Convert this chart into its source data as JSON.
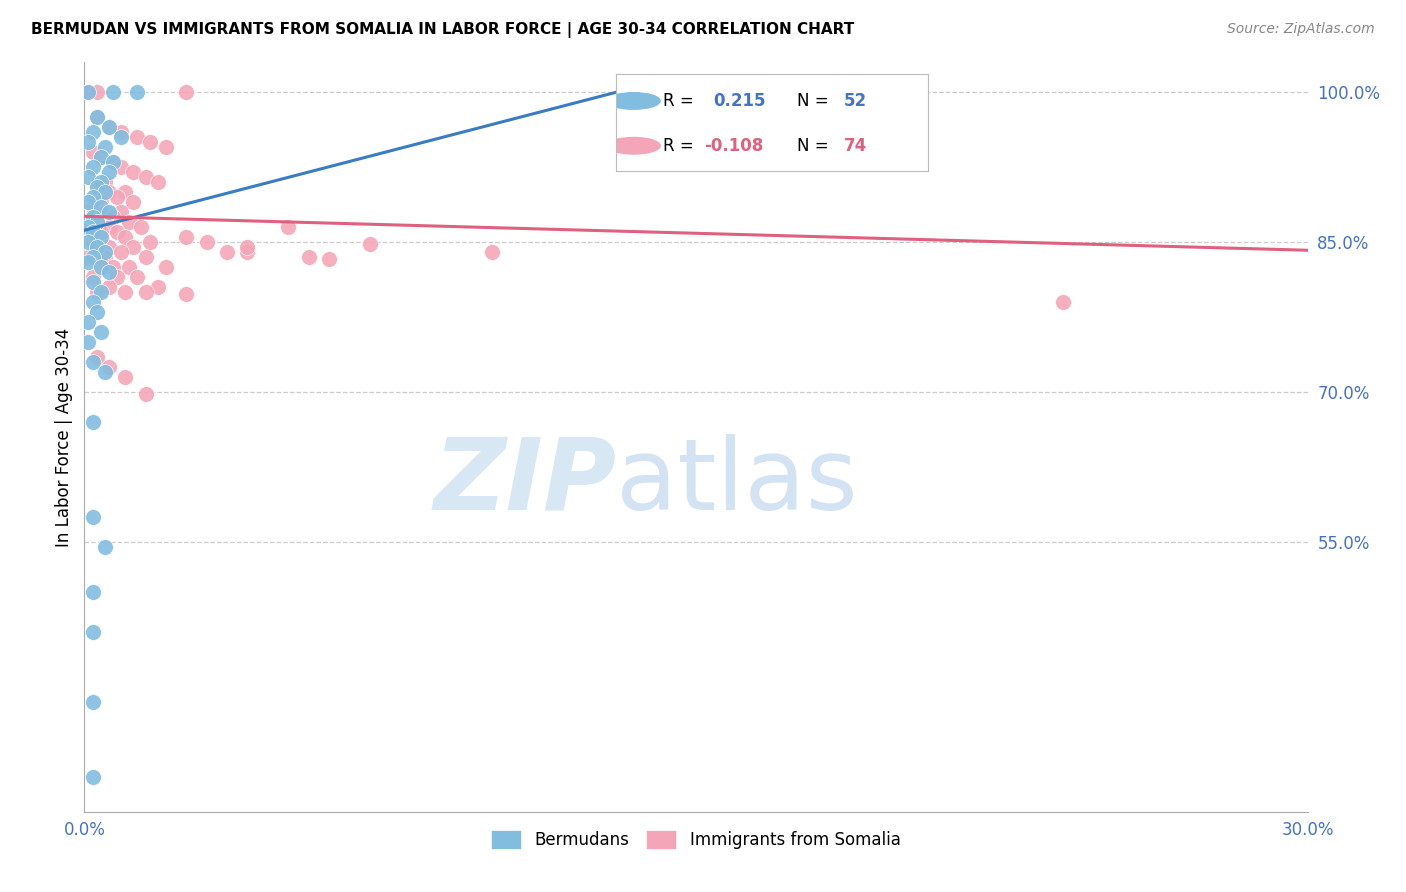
{
  "title": "BERMUDAN VS IMMIGRANTS FROM SOMALIA IN LABOR FORCE | AGE 30-34 CORRELATION CHART",
  "source": "Source: ZipAtlas.com",
  "ylabel": "In Labor Force | Age 30-34",
  "xlim": [
    0.0,
    0.3
  ],
  "ylim": [
    0.28,
    1.03
  ],
  "xticks": [
    0.0,
    0.05,
    0.1,
    0.15,
    0.2,
    0.25,
    0.3
  ],
  "xticklabels": [
    "0.0%",
    "",
    "",
    "",
    "",
    "",
    "30.0%"
  ],
  "yticks_right": [
    0.55,
    0.7,
    0.85,
    1.0
  ],
  "ytick_right_labels": [
    "55.0%",
    "70.0%",
    "85.0%",
    "100.0%"
  ],
  "legend_R_blue": "0.215",
  "legend_N_blue": "52",
  "legend_R_pink": "-0.108",
  "legend_N_pink": "74",
  "blue_color": "#82bde0",
  "pink_color": "#f4a6b8",
  "trend_blue_color": "#3a7cc4",
  "trend_pink_color": "#e06080",
  "blue_trend_x": [
    0.0,
    0.135
  ],
  "blue_trend_y": [
    0.862,
    1.005
  ],
  "pink_trend_x": [
    0.0,
    0.3
  ],
  "pink_trend_y": [
    0.876,
    0.842
  ],
  "blue_scatter": [
    [
      0.001,
      1.0
    ],
    [
      0.007,
      1.0
    ],
    [
      0.013,
      1.0
    ],
    [
      0.003,
      0.975
    ],
    [
      0.006,
      0.965
    ],
    [
      0.002,
      0.96
    ],
    [
      0.009,
      0.955
    ],
    [
      0.001,
      0.95
    ],
    [
      0.005,
      0.945
    ],
    [
      0.004,
      0.935
    ],
    [
      0.007,
      0.93
    ],
    [
      0.002,
      0.925
    ],
    [
      0.006,
      0.92
    ],
    [
      0.001,
      0.915
    ],
    [
      0.004,
      0.91
    ],
    [
      0.003,
      0.905
    ],
    [
      0.005,
      0.9
    ],
    [
      0.002,
      0.895
    ],
    [
      0.001,
      0.89
    ],
    [
      0.004,
      0.885
    ],
    [
      0.006,
      0.88
    ],
    [
      0.002,
      0.875
    ],
    [
      0.003,
      0.87
    ],
    [
      0.001,
      0.865
    ],
    [
      0.002,
      0.86
    ],
    [
      0.004,
      0.855
    ],
    [
      0.001,
      0.85
    ],
    [
      0.003,
      0.845
    ],
    [
      0.005,
      0.84
    ],
    [
      0.002,
      0.835
    ],
    [
      0.001,
      0.83
    ],
    [
      0.004,
      0.825
    ],
    [
      0.006,
      0.82
    ],
    [
      0.002,
      0.81
    ],
    [
      0.004,
      0.8
    ],
    [
      0.002,
      0.79
    ],
    [
      0.003,
      0.78
    ],
    [
      0.001,
      0.77
    ],
    [
      0.004,
      0.76
    ],
    [
      0.001,
      0.75
    ],
    [
      0.002,
      0.73
    ],
    [
      0.005,
      0.72
    ],
    [
      0.002,
      0.67
    ],
    [
      0.002,
      0.575
    ],
    [
      0.005,
      0.545
    ],
    [
      0.002,
      0.5
    ],
    [
      0.002,
      0.46
    ],
    [
      0.002,
      0.39
    ],
    [
      0.002,
      0.315
    ]
  ],
  "pink_scatter": [
    [
      0.001,
      1.0
    ],
    [
      0.003,
      1.0
    ],
    [
      0.025,
      1.0
    ],
    [
      0.165,
      1.0
    ],
    [
      0.003,
      0.975
    ],
    [
      0.006,
      0.965
    ],
    [
      0.009,
      0.96
    ],
    [
      0.013,
      0.955
    ],
    [
      0.016,
      0.95
    ],
    [
      0.02,
      0.945
    ],
    [
      0.002,
      0.94
    ],
    [
      0.004,
      0.935
    ],
    [
      0.007,
      0.93
    ],
    [
      0.009,
      0.925
    ],
    [
      0.012,
      0.92
    ],
    [
      0.015,
      0.915
    ],
    [
      0.018,
      0.91
    ],
    [
      0.005,
      0.91
    ],
    [
      0.003,
      0.905
    ],
    [
      0.006,
      0.9
    ],
    [
      0.01,
      0.9
    ],
    [
      0.008,
      0.895
    ],
    [
      0.004,
      0.89
    ],
    [
      0.012,
      0.89
    ],
    [
      0.002,
      0.885
    ],
    [
      0.005,
      0.88
    ],
    [
      0.009,
      0.88
    ],
    [
      0.007,
      0.875
    ],
    [
      0.011,
      0.87
    ],
    [
      0.003,
      0.87
    ],
    [
      0.006,
      0.865
    ],
    [
      0.014,
      0.865
    ],
    [
      0.001,
      0.86
    ],
    [
      0.004,
      0.86
    ],
    [
      0.008,
      0.86
    ],
    [
      0.01,
      0.855
    ],
    [
      0.002,
      0.85
    ],
    [
      0.016,
      0.85
    ],
    [
      0.025,
      0.855
    ],
    [
      0.03,
      0.85
    ],
    [
      0.006,
      0.845
    ],
    [
      0.012,
      0.845
    ],
    [
      0.003,
      0.845
    ],
    [
      0.009,
      0.84
    ],
    [
      0.035,
      0.84
    ],
    [
      0.04,
      0.84
    ],
    [
      0.001,
      0.835
    ],
    [
      0.005,
      0.835
    ],
    [
      0.015,
      0.835
    ],
    [
      0.055,
      0.835
    ],
    [
      0.06,
      0.833
    ],
    [
      0.007,
      0.825
    ],
    [
      0.011,
      0.825
    ],
    [
      0.004,
      0.825
    ],
    [
      0.02,
      0.825
    ],
    [
      0.07,
      0.848
    ],
    [
      0.002,
      0.815
    ],
    [
      0.008,
      0.815
    ],
    [
      0.013,
      0.815
    ],
    [
      0.006,
      0.805
    ],
    [
      0.018,
      0.805
    ],
    [
      0.003,
      0.8
    ],
    [
      0.01,
      0.8
    ],
    [
      0.05,
      0.865
    ],
    [
      0.1,
      0.84
    ],
    [
      0.015,
      0.8
    ],
    [
      0.025,
      0.798
    ],
    [
      0.01,
      0.715
    ],
    [
      0.015,
      0.698
    ],
    [
      0.003,
      0.735
    ],
    [
      0.006,
      0.725
    ],
    [
      0.24,
      0.79
    ],
    [
      0.04,
      0.845
    ]
  ]
}
